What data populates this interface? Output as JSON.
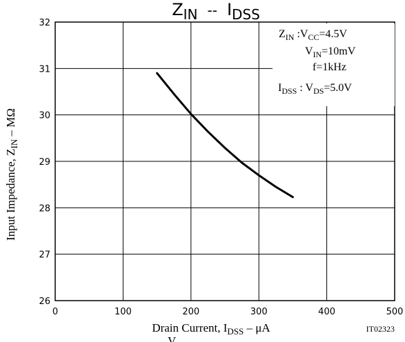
{
  "chart_data": {
    "type": "line",
    "title": {
      "main": "Z",
      "main_sub": "IN",
      "sep": "--",
      "second": "I",
      "second_sub": "DSS"
    },
    "xlabel": {
      "prefix": "Drain Current, I",
      "sub": "DSS",
      "suffix": "  –  μA"
    },
    "ylabel": {
      "prefix": "Input Impedance, Z",
      "sub": "IN",
      "suffix": "  –  MΩ"
    },
    "xlim": [
      0,
      500
    ],
    "ylim": [
      26,
      32
    ],
    "xticks": [
      0,
      100,
      200,
      300,
      400,
      500
    ],
    "yticks": [
      26,
      27,
      28,
      29,
      30,
      31,
      32
    ],
    "grid": true,
    "figure_id": "IT02323",
    "footer_fragment": "V",
    "conditions": [
      {
        "prefix": "Z",
        "prefix_sub": "IN",
        "mid": " :V",
        "mid_sub": "CC",
        "value": "=4.5V"
      },
      {
        "prefix": "",
        "prefix_sub": "",
        "mid": "V",
        "mid_sub": "IN",
        "value": "=10mV"
      },
      {
        "prefix": "",
        "prefix_sub": "",
        "mid": "f=1kHz",
        "mid_sub": "",
        "value": ""
      },
      {
        "prefix": "I",
        "prefix_sub": "DSS",
        "mid": " : V",
        "mid_sub": "DS",
        "value": "=5.0V"
      }
    ],
    "series": [
      {
        "color": "#000000",
        "x": [
          150,
          175,
          200,
          225,
          250,
          275,
          300,
          325,
          350
        ],
        "y": [
          30.9,
          30.45,
          30.02,
          29.64,
          29.29,
          28.97,
          28.7,
          28.45,
          28.23
        ]
      }
    ]
  }
}
